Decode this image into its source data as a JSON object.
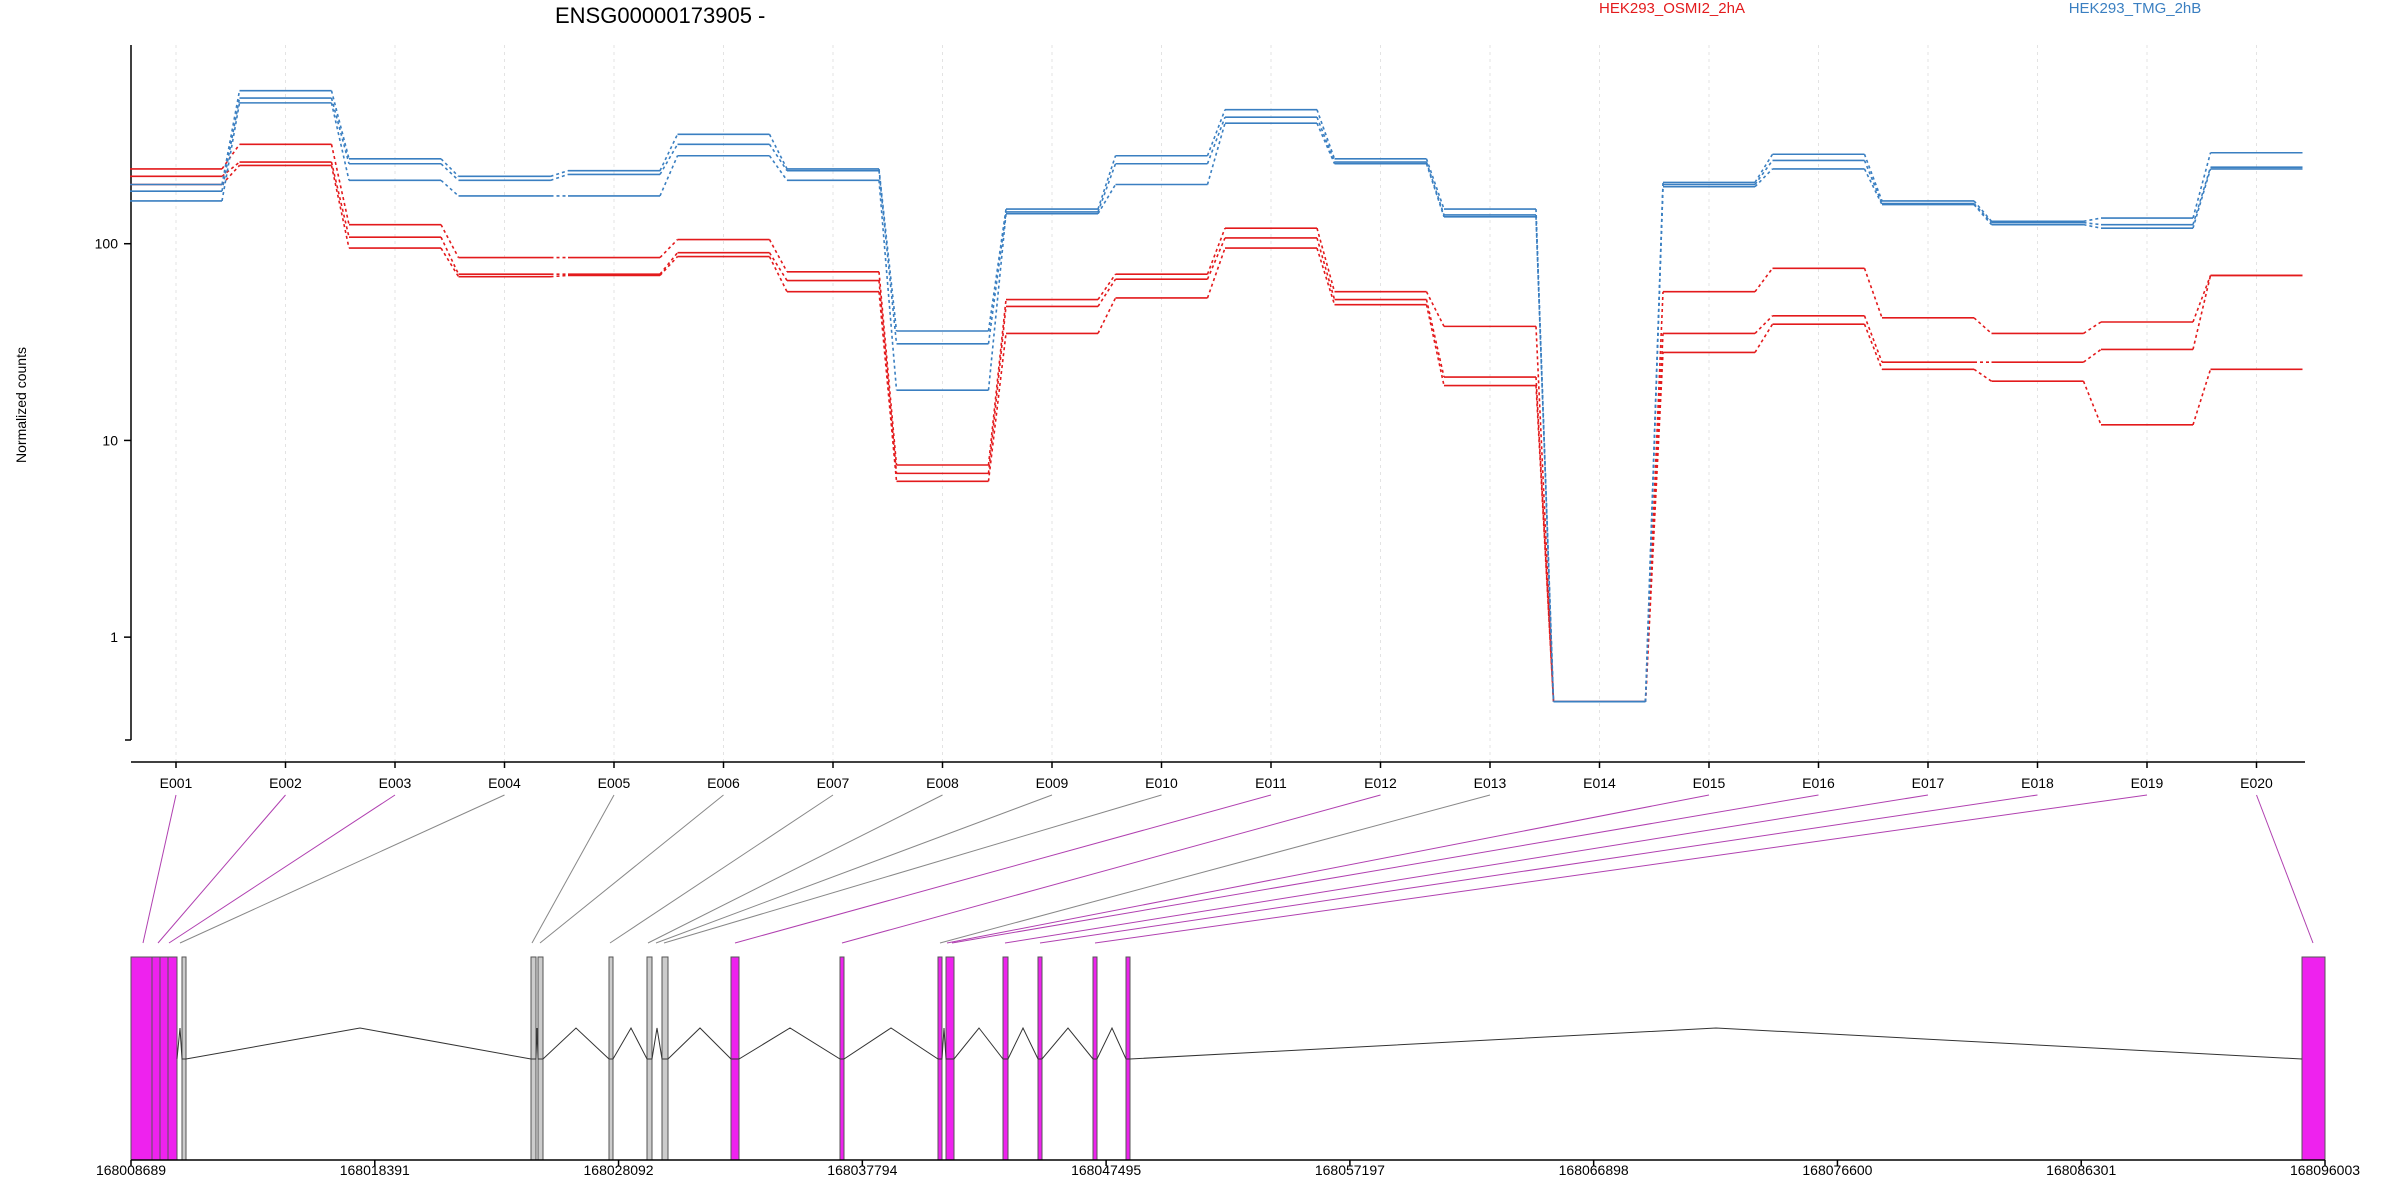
{
  "chart_data": {
    "type": "line",
    "title": "ENSG00000173905 -",
    "ylabel": "Normalized counts",
    "xlabel": "",
    "yscale": "log",
    "ylim": [
      0.3,
      1000
    ],
    "y_ticks": [
      1,
      10,
      100
    ],
    "y_tick_labels": [
      "1",
      "10",
      "100"
    ],
    "grid": "vertical dotted lines at each exon",
    "legend_placement": "top",
    "categories": [
      "E001",
      "E002",
      "E003",
      "E004",
      "E005",
      "E006",
      "E007",
      "E008",
      "E009",
      "E010",
      "E011",
      "E012",
      "E013",
      "E014",
      "E015",
      "E016",
      "E017",
      "E018",
      "E019",
      "E020"
    ],
    "groups": [
      {
        "name": "HEK293_OSMI2_2hA",
        "color": "#e31a1c"
      },
      {
        "name": "HEK293_TMG_2hB",
        "color": "#3a7fc1"
      }
    ],
    "series": [
      {
        "group": "HEK293_OSMI2_2hA",
        "values": [
          240,
          320,
          125,
          85,
          85,
          105,
          72,
          7.5,
          52,
          70,
          120,
          57,
          38,
          0.47,
          57,
          75,
          42,
          35,
          40,
          69
        ]
      },
      {
        "group": "HEK293_OSMI2_2hA",
        "values": [
          220,
          260,
          108,
          70,
          70,
          90,
          65,
          6.8,
          48,
          66,
          107,
          52,
          21,
          0.47,
          35,
          43,
          25,
          25,
          29,
          69
        ]
      },
      {
        "group": "HEK293_OSMI2_2hA",
        "values": [
          200,
          250,
          95,
          68,
          69,
          86,
          57,
          6.2,
          35,
          53,
          95,
          49,
          19,
          0.47,
          28,
          39,
          23,
          20,
          12,
          23
        ]
      },
      {
        "group": "HEK293_TMG_2hB",
        "values": [
          200,
          600,
          270,
          220,
          235,
          360,
          240,
          36,
          150,
          280,
          480,
          270,
          150,
          0.47,
          205,
          285,
          165,
          130,
          135,
          290
        ]
      },
      {
        "group": "HEK293_TMG_2hB",
        "values": [
          185,
          550,
          255,
          210,
          225,
          320,
          235,
          31,
          145,
          255,
          440,
          260,
          140,
          0.47,
          200,
          265,
          160,
          128,
          125,
          245
        ]
      },
      {
        "group": "HEK293_TMG_2hB",
        "values": [
          165,
          520,
          210,
          175,
          175,
          280,
          210,
          18,
          142,
          200,
          410,
          255,
          137,
          0.47,
          195,
          240,
          158,
          125,
          120,
          240
        ]
      }
    ],
    "gene_model": {
      "coordinate_ticks": [
        "168008689",
        "168018391",
        "168028092",
        "168037794",
        "168047495",
        "168057197",
        "168066898",
        "168076600",
        "168086301",
        "168096003"
      ],
      "exon_colors": {
        "tested_significant": "#ee22ee",
        "tested": "#cccccc",
        "outline": "#555555"
      }
    }
  }
}
